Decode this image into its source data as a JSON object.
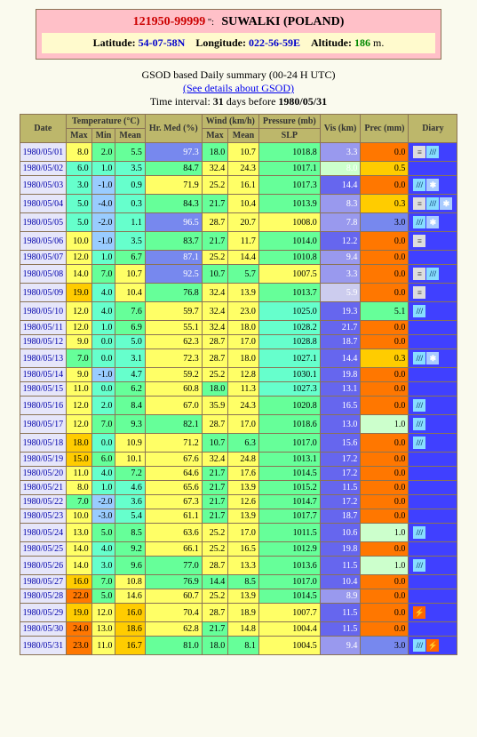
{
  "header": {
    "id": "121950-99999",
    "name": "SUWALKI (POLAND)",
    "lat": "54-07-58N",
    "lon": "022-56-59E",
    "alt": "186"
  },
  "meta": {
    "l1": "GSOD based Daily summary (00-24 H UTC)",
    "link": "(See details about GSOD)",
    "l2a": "Time interval: ",
    "l2b": "31",
    "l2c": " days before ",
    "l2d": "1980/05/31"
  },
  "head": {
    "date": "Date",
    "temp": "Temperature (°C)",
    "hr": "Hr. Med (%)",
    "wind": "Wind (km/h)",
    "pres": "Pressure (mb)",
    "vis": "Vis (km)",
    "prec": "Prec (mm)",
    "diary": "Diary",
    "max": "Max",
    "min": "Min",
    "mean": "Mean",
    "slp": "SLP"
  },
  "rows": [
    {
      "d": "1980/05/01",
      "tmax": "8.0",
      "tmin": "2.0",
      "tmean": "5.5",
      "hr": "97.3",
      "wmax": "18.0",
      "wmean": "10.7",
      "slp": "1018.8",
      "vis": "3.3",
      "prec": "0.0",
      "cols": [
        "#ffff66",
        "#66ff99",
        "#66ff99",
        "#7788ee",
        "#66ff99",
        "#ffff66",
        "#66ff99",
        "#9999ee",
        "#ff7700"
      ],
      "diary": [
        "fog",
        "rain"
      ]
    },
    {
      "d": "1980/05/02",
      "tmax": "6.0",
      "tmin": "1.0",
      "tmean": "3.5",
      "hr": "84.7",
      "wmax": "32.4",
      "wmean": "24.3",
      "slp": "1017.1",
      "vis": "8.0",
      "prec": "0.5",
      "cols": [
        "#66ffcc",
        "#66ffcc",
        "#66ffcc",
        "#66ff99",
        "#ffff66",
        "#ffff66",
        "#66ff99",
        "#ccffcc",
        "#ffcc00"
      ],
      "diary": []
    },
    {
      "d": "1980/05/03",
      "tmax": "3.0",
      "tmin": "-1.0",
      "tmean": "0.9",
      "hr": "71.9",
      "wmax": "25.2",
      "wmean": "16.1",
      "slp": "1017.3",
      "vis": "14.4",
      "prec": "0.0",
      "cols": [
        "#66ffcc",
        "#99ccff",
        "#66ffcc",
        "#ffff66",
        "#ffff66",
        "#ffff66",
        "#66ff99",
        "#6666ee",
        "#ff7700"
      ],
      "diary": [
        "rain",
        "snow"
      ]
    },
    {
      "d": "1980/05/04",
      "tmax": "5.0",
      "tmin": "-4.0",
      "tmean": "0.3",
      "hr": "84.3",
      "wmax": "21.7",
      "wmean": "10.4",
      "slp": "1013.9",
      "vis": "8.3",
      "prec": "0.3",
      "cols": [
        "#66ffcc",
        "#99ccff",
        "#66ffcc",
        "#66ff99",
        "#66ff99",
        "#ffff66",
        "#66ff99",
        "#9999ee",
        "#ffcc00"
      ],
      "diary": [
        "fog",
        "rain",
        "snow"
      ]
    },
    {
      "d": "1980/05/05",
      "tmax": "5.0",
      "tmin": "-2.0",
      "tmean": "1.1",
      "hr": "96.5",
      "wmax": "28.7",
      "wmean": "20.7",
      "slp": "1008.0",
      "vis": "7.8",
      "prec": "3.0",
      "cols": [
        "#66ffcc",
        "#99ccff",
        "#66ffcc",
        "#7788ee",
        "#ffff66",
        "#ffff66",
        "#ffff66",
        "#9999ee",
        "#7788ee"
      ],
      "diary": [
        "rain",
        "snow"
      ]
    },
    {
      "d": "1980/05/06",
      "tmax": "10.0",
      "tmin": "-1.0",
      "tmean": "3.5",
      "hr": "83.7",
      "wmax": "21.7",
      "wmean": "11.7",
      "slp": "1014.0",
      "vis": "12.2",
      "prec": "0.0",
      "cols": [
        "#ffff66",
        "#99ccff",
        "#66ffcc",
        "#66ff99",
        "#66ff99",
        "#ffff66",
        "#66ff99",
        "#6666ee",
        "#ff7700"
      ],
      "diary": [
        "fog"
      ]
    },
    {
      "d": "1980/05/07",
      "tmax": "12.0",
      "tmin": "1.0",
      "tmean": "6.7",
      "hr": "87.1",
      "wmax": "25.2",
      "wmean": "14.4",
      "slp": "1010.8",
      "vis": "9.4",
      "prec": "0.0",
      "cols": [
        "#ffff66",
        "#66ffcc",
        "#66ff99",
        "#7788ee",
        "#ffff66",
        "#ffff66",
        "#66ff99",
        "#9999ee",
        "#ff7700"
      ],
      "diary": []
    },
    {
      "d": "1980/05/08",
      "tmax": "14.0",
      "tmin": "7.0",
      "tmean": "10.7",
      "hr": "92.5",
      "wmax": "10.7",
      "wmean": "5.7",
      "slp": "1007.5",
      "vis": "3.3",
      "prec": "0.0",
      "cols": [
        "#ffff66",
        "#66ff99",
        "#ffff66",
        "#7788ee",
        "#66ff99",
        "#66ff99",
        "#ffff66",
        "#9999ee",
        "#ff7700"
      ],
      "diary": [
        "fog",
        "rain"
      ]
    },
    {
      "d": "1980/05/09",
      "tmax": "19.0",
      "tmin": "4.0",
      "tmean": "10.4",
      "hr": "76.8",
      "wmax": "32.4",
      "wmean": "13.9",
      "slp": "1013.7",
      "vis": "5.9",
      "prec": "0.0",
      "cols": [
        "#ffcc00",
        "#66ffcc",
        "#ffff66",
        "#66ff99",
        "#ffff66",
        "#ffff66",
        "#66ff99",
        "#ccccee",
        "#ff7700"
      ],
      "diary": [
        "fog"
      ]
    },
    {
      "d": "1980/05/10",
      "tmax": "12.0",
      "tmin": "4.0",
      "tmean": "7.6",
      "hr": "59.7",
      "wmax": "32.4",
      "wmean": "23.0",
      "slp": "1025.0",
      "vis": "19.3",
      "prec": "5.1",
      "cols": [
        "#ffff66",
        "#66ffcc",
        "#66ff99",
        "#ffff66",
        "#ffff66",
        "#ffff66",
        "#66ffcc",
        "#6666ee",
        "#66ff99"
      ],
      "diary": [
        "rain"
      ]
    },
    {
      "d": "1980/05/11",
      "tmax": "12.0",
      "tmin": "1.0",
      "tmean": "6.9",
      "hr": "55.1",
      "wmax": "32.4",
      "wmean": "18.0",
      "slp": "1028.2",
      "vis": "21.7",
      "prec": "0.0",
      "cols": [
        "#ffff66",
        "#66ffcc",
        "#66ff99",
        "#ffff66",
        "#ffff66",
        "#ffff66",
        "#66ffcc",
        "#6666ee",
        "#ff7700"
      ],
      "diary": []
    },
    {
      "d": "1980/05/12",
      "tmax": "9.0",
      "tmin": "0.0",
      "tmean": "5.0",
      "hr": "62.3",
      "wmax": "28.7",
      "wmean": "17.0",
      "slp": "1028.8",
      "vis": "18.7",
      "prec": "0.0",
      "cols": [
        "#ffff66",
        "#66ffcc",
        "#66ffcc",
        "#ffff66",
        "#ffff66",
        "#ffff66",
        "#66ffcc",
        "#6666ee",
        "#ff7700"
      ],
      "diary": []
    },
    {
      "d": "1980/05/13",
      "tmax": "7.0",
      "tmin": "0.0",
      "tmean": "3.1",
      "hr": "72.3",
      "wmax": "28.7",
      "wmean": "18.0",
      "slp": "1027.1",
      "vis": "14.4",
      "prec": "0.3",
      "cols": [
        "#66ff99",
        "#66ffcc",
        "#66ffcc",
        "#ffff66",
        "#ffff66",
        "#ffff66",
        "#66ffcc",
        "#6666ee",
        "#ffcc00"
      ],
      "diary": [
        "rain",
        "snow"
      ]
    },
    {
      "d": "1980/05/14",
      "tmax": "9.0",
      "tmin": "-1.0",
      "tmean": "4.7",
      "hr": "59.2",
      "wmax": "25.2",
      "wmean": "12.8",
      "slp": "1030.1",
      "vis": "19.8",
      "prec": "0.0",
      "cols": [
        "#ffff66",
        "#99ccff",
        "#66ffcc",
        "#ffff66",
        "#ffff66",
        "#ffff66",
        "#66ffcc",
        "#6666ee",
        "#ff7700"
      ],
      "diary": []
    },
    {
      "d": "1980/05/15",
      "tmax": "11.0",
      "tmin": "0.0",
      "tmean": "6.2",
      "hr": "60.8",
      "wmax": "18.0",
      "wmean": "11.3",
      "slp": "1027.3",
      "vis": "13.1",
      "prec": "0.0",
      "cols": [
        "#ffff66",
        "#66ffcc",
        "#66ff99",
        "#ffff66",
        "#66ff99",
        "#ffff66",
        "#66ffcc",
        "#6666ee",
        "#ff7700"
      ],
      "diary": []
    },
    {
      "d": "1980/05/16",
      "tmax": "12.0",
      "tmin": "2.0",
      "tmean": "8.4",
      "hr": "67.0",
      "wmax": "35.9",
      "wmean": "24.3",
      "slp": "1020.8",
      "vis": "16.5",
      "prec": "0.0",
      "cols": [
        "#ffff66",
        "#66ffcc",
        "#66ff99",
        "#ffff66",
        "#ffff66",
        "#ffff66",
        "#66ff99",
        "#6666ee",
        "#ff7700"
      ],
      "diary": [
        "rain"
      ]
    },
    {
      "d": "1980/05/17",
      "tmax": "12.0",
      "tmin": "7.0",
      "tmean": "9.3",
      "hr": "82.1",
      "wmax": "28.7",
      "wmean": "17.0",
      "slp": "1018.6",
      "vis": "13.0",
      "prec": "1.0",
      "cols": [
        "#ffff66",
        "#66ff99",
        "#66ff99",
        "#66ff99",
        "#ffff66",
        "#ffff66",
        "#66ff99",
        "#6666ee",
        "#ccffcc"
      ],
      "diary": [
        "rain"
      ]
    },
    {
      "d": "1980/05/18",
      "tmax": "18.0",
      "tmin": "0.0",
      "tmean": "10.9",
      "hr": "71.2",
      "wmax": "10.7",
      "wmean": "6.3",
      "slp": "1017.0",
      "vis": "15.6",
      "prec": "0.0",
      "cols": [
        "#ffcc00",
        "#66ffcc",
        "#ffff66",
        "#ffff66",
        "#66ff99",
        "#66ff99",
        "#66ff99",
        "#6666ee",
        "#ff7700"
      ],
      "diary": [
        "rain"
      ]
    },
    {
      "d": "1980/05/19",
      "tmax": "15.0",
      "tmin": "6.0",
      "tmean": "10.1",
      "hr": "67.6",
      "wmax": "32.4",
      "wmean": "24.8",
      "slp": "1013.1",
      "vis": "17.2",
      "prec": "0.0",
      "cols": [
        "#ffcc00",
        "#66ff99",
        "#ffff66",
        "#ffff66",
        "#ffff66",
        "#ffff66",
        "#66ff99",
        "#6666ee",
        "#ff7700"
      ],
      "diary": []
    },
    {
      "d": "1980/05/20",
      "tmax": "11.0",
      "tmin": "4.0",
      "tmean": "7.2",
      "hr": "64.6",
      "wmax": "21.7",
      "wmean": "17.6",
      "slp": "1014.5",
      "vis": "17.2",
      "prec": "0.0",
      "cols": [
        "#ffff66",
        "#66ffcc",
        "#66ff99",
        "#ffff66",
        "#66ff99",
        "#ffff66",
        "#66ff99",
        "#6666ee",
        "#ff7700"
      ],
      "diary": []
    },
    {
      "d": "1980/05/21",
      "tmax": "8.0",
      "tmin": "1.0",
      "tmean": "4.6",
      "hr": "65.6",
      "wmax": "21.7",
      "wmean": "13.9",
      "slp": "1015.2",
      "vis": "11.5",
      "prec": "0.0",
      "cols": [
        "#ffff66",
        "#66ffcc",
        "#66ffcc",
        "#ffff66",
        "#66ff99",
        "#ffff66",
        "#66ff99",
        "#6666ee",
        "#ff7700"
      ],
      "diary": []
    },
    {
      "d": "1980/05/22",
      "tmax": "7.0",
      "tmin": "-2.0",
      "tmean": "3.6",
      "hr": "67.3",
      "wmax": "21.7",
      "wmean": "12.6",
      "slp": "1014.7",
      "vis": "17.2",
      "prec": "0.0",
      "cols": [
        "#66ff99",
        "#99ccff",
        "#66ffcc",
        "#ffff66",
        "#66ff99",
        "#ffff66",
        "#66ff99",
        "#6666ee",
        "#ff7700"
      ],
      "diary": []
    },
    {
      "d": "1980/05/23",
      "tmax": "10.0",
      "tmin": "-3.0",
      "tmean": "5.4",
      "hr": "61.1",
      "wmax": "21.7",
      "wmean": "13.9",
      "slp": "1017.7",
      "vis": "18.7",
      "prec": "0.0",
      "cols": [
        "#ffff66",
        "#99ccff",
        "#66ffcc",
        "#ffff66",
        "#66ff99",
        "#ffff66",
        "#66ff99",
        "#6666ee",
        "#ff7700"
      ],
      "diary": []
    },
    {
      "d": "1980/05/24",
      "tmax": "13.0",
      "tmin": "5.0",
      "tmean": "8.5",
      "hr": "63.6",
      "wmax": "25.2",
      "wmean": "17.0",
      "slp": "1011.5",
      "vis": "10.6",
      "prec": "1.0",
      "cols": [
        "#ffff66",
        "#66ff99",
        "#66ff99",
        "#ffff66",
        "#ffff66",
        "#ffff66",
        "#66ff99",
        "#6666ee",
        "#ccffcc"
      ],
      "diary": [
        "rain"
      ]
    },
    {
      "d": "1980/05/25",
      "tmax": "14.0",
      "tmin": "4.0",
      "tmean": "9.2",
      "hr": "66.1",
      "wmax": "25.2",
      "wmean": "16.5",
      "slp": "1012.9",
      "vis": "19.8",
      "prec": "0.0",
      "cols": [
        "#ffff66",
        "#66ffcc",
        "#66ff99",
        "#ffff66",
        "#ffff66",
        "#ffff66",
        "#66ff99",
        "#6666ee",
        "#ff7700"
      ],
      "diary": []
    },
    {
      "d": "1980/05/26",
      "tmax": "14.0",
      "tmin": "3.0",
      "tmean": "9.6",
      "hr": "77.0",
      "wmax": "28.7",
      "wmean": "13.3",
      "slp": "1013.6",
      "vis": "11.5",
      "prec": "1.0",
      "cols": [
        "#ffff66",
        "#66ffcc",
        "#66ff99",
        "#66ff99",
        "#ffff66",
        "#ffff66",
        "#66ff99",
        "#6666ee",
        "#ccffcc"
      ],
      "diary": [
        "rain"
      ]
    },
    {
      "d": "1980/05/27",
      "tmax": "16.0",
      "tmin": "7.0",
      "tmean": "10.8",
      "hr": "76.9",
      "wmax": "14.4",
      "wmean": "8.5",
      "slp": "1017.0",
      "vis": "10.4",
      "prec": "0.0",
      "cols": [
        "#ffcc00",
        "#66ff99",
        "#ffff66",
        "#66ff99",
        "#66ff99",
        "#66ff99",
        "#66ff99",
        "#6666ee",
        "#ff7700"
      ],
      "diary": []
    },
    {
      "d": "1980/05/28",
      "tmax": "22.0",
      "tmin": "5.0",
      "tmean": "14.6",
      "hr": "60.7",
      "wmax": "25.2",
      "wmean": "13.9",
      "slp": "1014.5",
      "vis": "8.9",
      "prec": "0.0",
      "cols": [
        "#ff7700",
        "#66ff99",
        "#ffff66",
        "#ffff66",
        "#ffff66",
        "#ffff66",
        "#66ff99",
        "#9999ee",
        "#ff7700"
      ],
      "diary": []
    },
    {
      "d": "1980/05/29",
      "tmax": "19.0",
      "tmin": "12.0",
      "tmean": "16.0",
      "hr": "70.4",
      "wmax": "28.7",
      "wmean": "18.9",
      "slp": "1007.7",
      "vis": "11.5",
      "prec": "0.0",
      "cols": [
        "#ffcc00",
        "#ffff66",
        "#ffcc00",
        "#ffff66",
        "#ffff66",
        "#ffff66",
        "#ffff66",
        "#6666ee",
        "#ff7700"
      ],
      "diary": [
        "thunder"
      ]
    },
    {
      "d": "1980/05/30",
      "tmax": "24.0",
      "tmin": "13.0",
      "tmean": "18.6",
      "hr": "62.8",
      "wmax": "21.7",
      "wmean": "14.8",
      "slp": "1004.4",
      "vis": "11.5",
      "prec": "0.0",
      "cols": [
        "#ff7700",
        "#ffff66",
        "#ffcc00",
        "#ffff66",
        "#66ff99",
        "#ffff66",
        "#ffff66",
        "#6666ee",
        "#ff7700"
      ],
      "diary": []
    },
    {
      "d": "1980/05/31",
      "tmax": "23.0",
      "tmin": "11.0",
      "tmean": "16.7",
      "hr": "81.0",
      "wmax": "18.0",
      "wmean": "8.1",
      "slp": "1004.5",
      "vis": "9.4",
      "prec": "3.0",
      "cols": [
        "#ff7700",
        "#ffff66",
        "#ffcc00",
        "#66ff99",
        "#66ff99",
        "#66ff99",
        "#ffff66",
        "#9999ee",
        "#7788ee"
      ],
      "diary": [
        "rain",
        "thunder"
      ]
    }
  ]
}
